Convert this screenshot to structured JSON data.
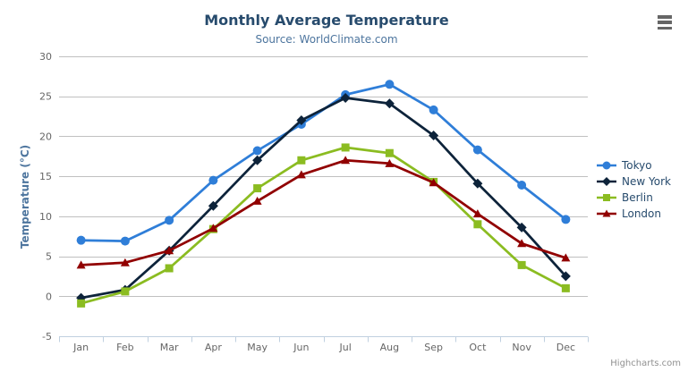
{
  "chart_data": {
    "type": "line",
    "title": "Monthly Average Temperature",
    "subtitle": "Source: WorldClimate.com",
    "categories": [
      "Jan",
      "Feb",
      "Mar",
      "Apr",
      "May",
      "Jun",
      "Jul",
      "Aug",
      "Sep",
      "Oct",
      "Nov",
      "Dec"
    ],
    "xlabel": "",
    "ylabel": "Temperature (°C)",
    "ylim": [
      -5,
      30
    ],
    "yticks": [
      -5,
      0,
      5,
      10,
      15,
      20,
      25,
      30
    ],
    "grid": true,
    "legend_position": "right",
    "series": [
      {
        "name": "Tokyo",
        "color": "#2f7ed8",
        "marker": "circle",
        "values": [
          7.0,
          6.9,
          9.5,
          14.5,
          18.2,
          21.5,
          25.2,
          26.5,
          23.3,
          18.3,
          13.9,
          9.6
        ]
      },
      {
        "name": "New York",
        "color": "#0d233a",
        "marker": "diamond",
        "values": [
          -0.2,
          0.8,
          5.7,
          11.3,
          17.0,
          22.0,
          24.8,
          24.1,
          20.1,
          14.1,
          8.6,
          2.5
        ]
      },
      {
        "name": "Berlin",
        "color": "#8bbc21",
        "marker": "square",
        "values": [
          -0.9,
          0.6,
          3.5,
          8.4,
          13.5,
          17.0,
          18.6,
          17.9,
          14.3,
          9.0,
          3.9,
          1.0
        ]
      },
      {
        "name": "London",
        "color": "#910000",
        "marker": "triangle",
        "values": [
          3.9,
          4.2,
          5.7,
          8.5,
          11.9,
          15.2,
          17.0,
          16.6,
          14.2,
          10.3,
          6.6,
          4.8
        ]
      }
    ]
  },
  "credit": "Highcharts.com",
  "icons": {
    "context_menu": "hamburger-menu-icon"
  },
  "colors": {
    "title_text": "#274b6d",
    "subtitle_text": "#4d759e",
    "axis_label_text": "#666666",
    "axis_title_text": "#4d759e",
    "grid_line": "#c0c0c0",
    "axis_line": "#c0d0e0",
    "credit_text": "#909090",
    "menu_icon": "#666666"
  }
}
